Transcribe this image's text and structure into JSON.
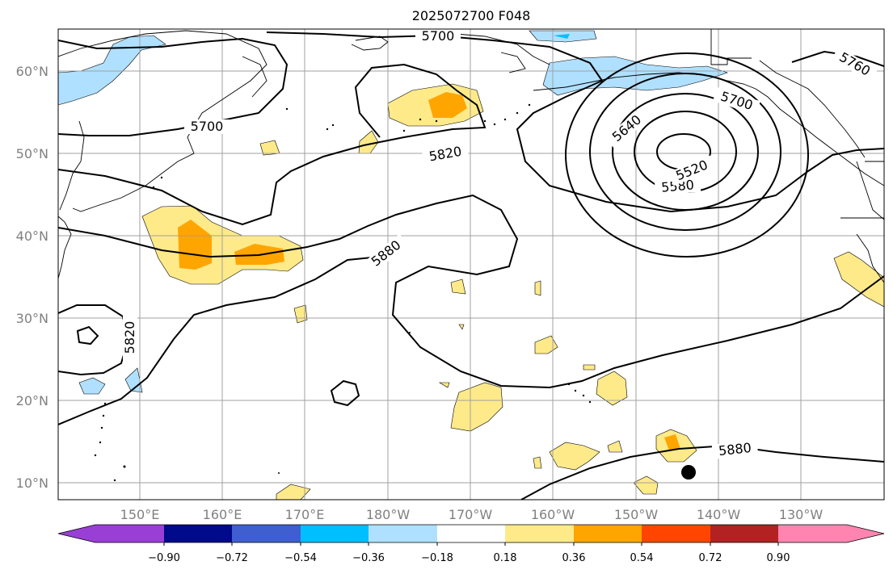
{
  "title": "2025072700 F048",
  "map": {
    "lat_ticks": [
      "10°N",
      "20°N",
      "30°N",
      "40°N",
      "50°N",
      "60°N"
    ],
    "lon_ticks": [
      "150°E",
      "160°E",
      "170°E",
      "180°W",
      "170°W",
      "160°W",
      "150°W",
      "140°W",
      "130°W"
    ],
    "contour_labels": [
      "5700",
      "5700",
      "5820",
      "5880",
      "5700",
      "5640",
      "5580",
      "5520",
      "5760",
      "5820",
      "5880"
    ],
    "marker": "storm-center"
  },
  "colorbar": {
    "tick_labels": [
      "−0.90",
      "−0.72",
      "−0.54",
      "−0.36",
      "−0.18",
      "0.18",
      "0.36",
      "0.54",
      "0.72",
      "0.90"
    ],
    "colors": [
      "#9a3fd6",
      "#000a8a",
      "#3f5fd0",
      "#00bfff",
      "#b0e0ff",
      "#ffffff",
      "#ffea8a",
      "#ffa500",
      "#ff4500",
      "#b22222",
      "#ff85b0"
    ]
  }
}
